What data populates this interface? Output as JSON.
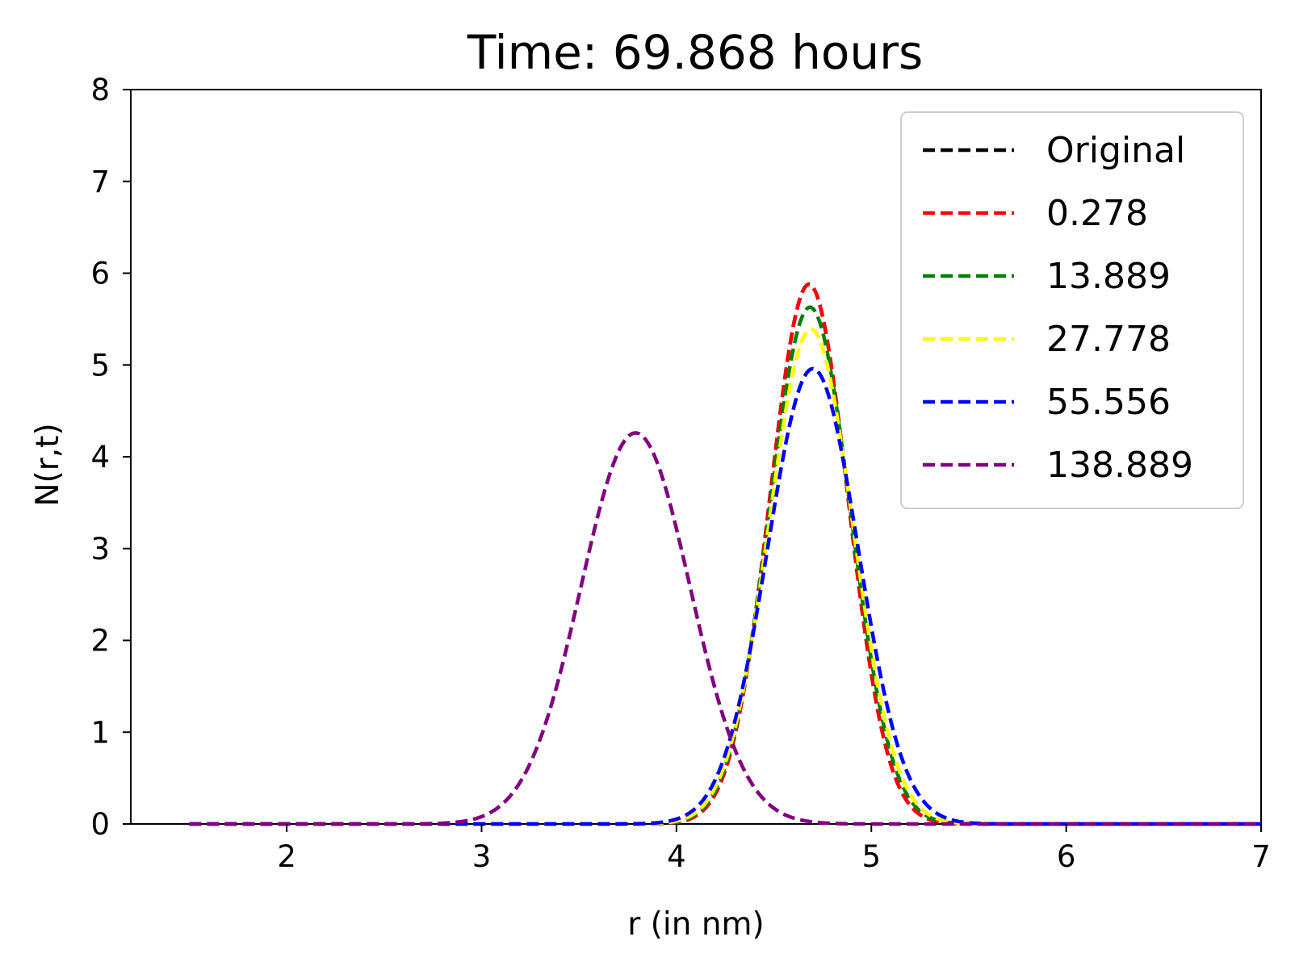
{
  "chart_data": {
    "type": "line",
    "title": "Time: 69.868 hours",
    "xlabel": "r (in nm)",
    "ylabel": "N(r,t)",
    "xlim": [
      1.2,
      7
    ],
    "ylim": [
      0,
      8
    ],
    "xticks": [
      2,
      3,
      4,
      5,
      6,
      7
    ],
    "yticks": [
      0,
      1,
      2,
      3,
      4,
      5,
      6,
      7,
      8
    ],
    "grid": false,
    "legend_position": "top-right",
    "line_style": "dashed",
    "series": [
      {
        "name": "Original",
        "color": "#000000",
        "peak_r": 4.68,
        "peak_n": 5.88,
        "width": 0.2
      },
      {
        "name": "0.278",
        "color": "#ff0000",
        "peak_r": 4.68,
        "peak_n": 5.88,
        "width": 0.2
      },
      {
        "name": "13.889",
        "color": "#008000",
        "peak_r": 4.685,
        "peak_n": 5.63,
        "width": 0.208
      },
      {
        "name": "27.778",
        "color": "#ffff00",
        "peak_r": 4.69,
        "peak_n": 5.39,
        "width": 0.215
      },
      {
        "name": "55.556",
        "color": "#0000ff",
        "peak_r": 4.7,
        "peak_n": 4.96,
        "width": 0.232
      },
      {
        "name": "138.889",
        "color": "#800080",
        "peak_r": 3.79,
        "peak_n": 4.26,
        "width": 0.28
      }
    ],
    "r_range": [
      1.5,
      7
    ]
  }
}
